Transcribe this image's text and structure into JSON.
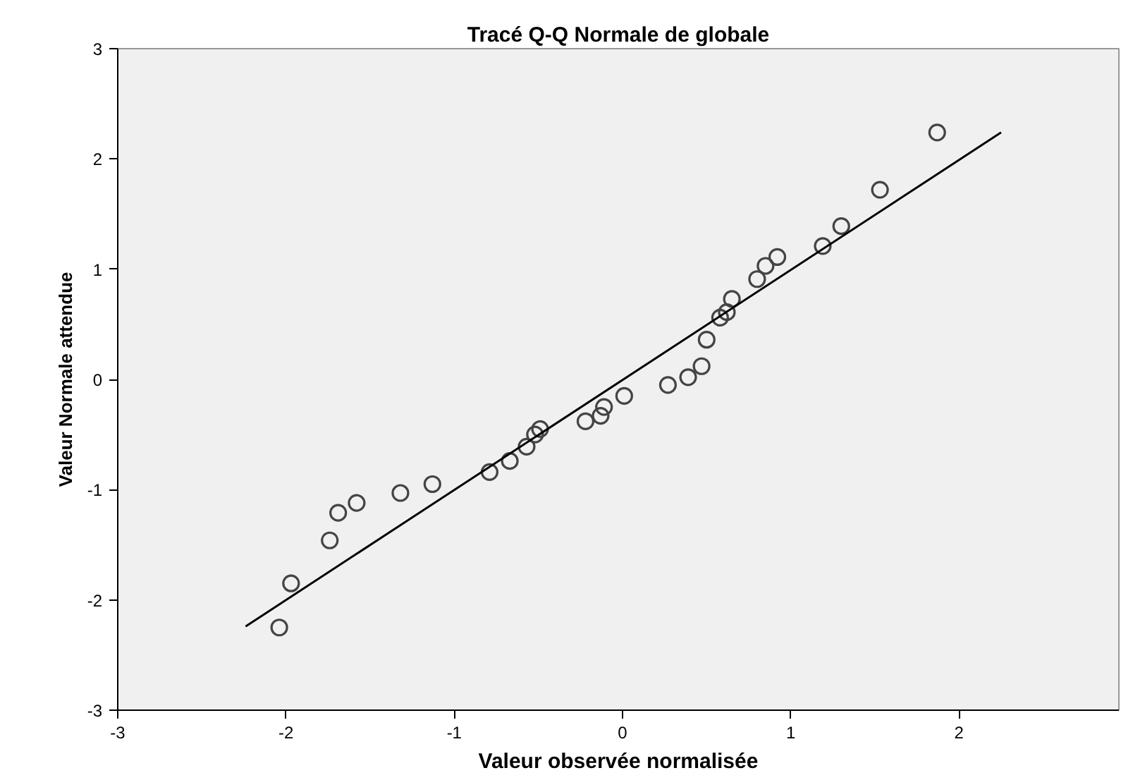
{
  "chart_data": {
    "type": "scatter",
    "title": "Tracé Q-Q Normale de globale",
    "xlabel": "Valeur observée normalisée",
    "ylabel": "Valeur Normale attendue",
    "xlim": [
      -3,
      2.95
    ],
    "ylim": [
      -3,
      3
    ],
    "xticks": [
      -3,
      -2,
      -1,
      0,
      1,
      2
    ],
    "yticks": [
      -3,
      -2,
      -1,
      0,
      1,
      2,
      3
    ],
    "grid": false,
    "series": [
      {
        "marker": "circle",
        "color": "#444444",
        "x": [
          -2.04,
          -1.97,
          -1.74,
          -1.69,
          -1.58,
          -1.32,
          -1.13,
          -0.79,
          -0.67,
          -0.57,
          -0.52,
          -0.49,
          -0.22,
          -0.13,
          -0.11,
          0.01,
          0.27,
          0.39,
          0.47,
          0.5,
          0.58,
          0.62,
          0.65,
          0.8,
          0.85,
          0.92,
          1.19,
          1.3,
          1.53,
          1.87
        ],
        "values": [
          -2.25,
          -1.85,
          -1.46,
          -1.21,
          -1.12,
          -1.03,
          -0.95,
          -0.84,
          -0.74,
          -0.61,
          -0.5,
          -0.45,
          -0.38,
          -0.33,
          -0.25,
          -0.15,
          -0.05,
          0.02,
          0.12,
          0.36,
          0.56,
          0.61,
          0.73,
          0.91,
          1.03,
          1.11,
          1.21,
          1.39,
          1.72,
          2.24
        ]
      },
      {
        "type": "line",
        "marker": "none",
        "color": "#000000",
        "x": [
          -2.24,
          2.25
        ],
        "values": [
          -2.24,
          2.24
        ]
      }
    ]
  }
}
